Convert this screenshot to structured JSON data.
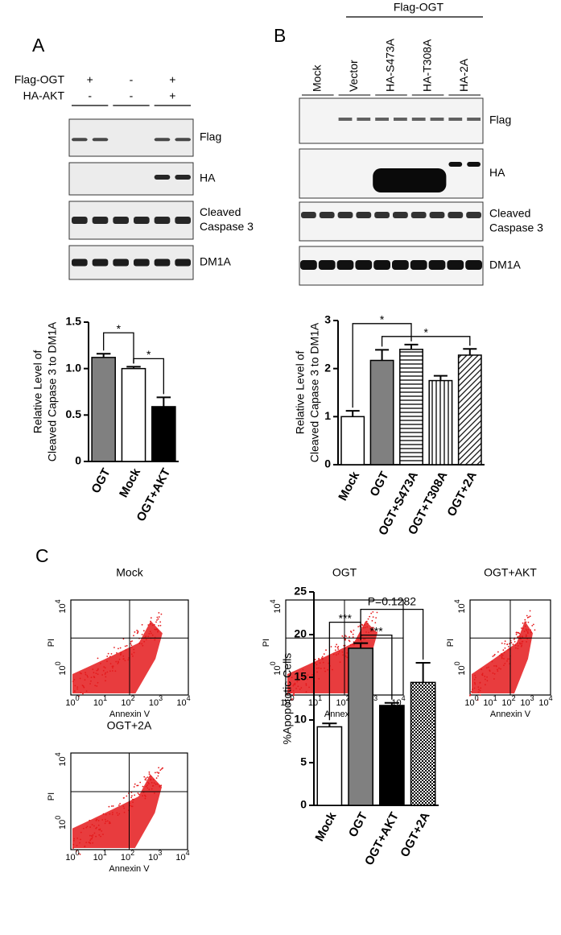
{
  "panels": [
    "A",
    "B",
    "C"
  ],
  "blot_a": {
    "row_labels": [
      "Flag-OGT",
      "HA-AKT"
    ],
    "signs": [
      [
        "+",
        "-",
        "+"
      ],
      [
        "-",
        "-",
        "+"
      ]
    ],
    "bands": [
      [
        "Flag"
      ],
      [
        "HA"
      ],
      [
        "Cleaved",
        "Caspase 3"
      ],
      [
        "DM1A"
      ]
    ]
  },
  "blot_b": {
    "group": "Flag-OGT",
    "lanes": [
      "Mock",
      "Vector",
      "HA-S473A",
      "HA-T308A",
      "HA-2A"
    ],
    "bands": [
      [
        "Flag"
      ],
      [
        "HA"
      ],
      [
        "Cleaved",
        "Caspase 3"
      ],
      [
        "DM1A"
      ]
    ]
  },
  "flow": {
    "plots": [
      "Mock",
      "OGT",
      "OGT+AKT",
      "OGT+2A"
    ],
    "x_label": "Annexin V",
    "y_label": "PI",
    "tick_base": "10",
    "x_tick_exps": [
      "0",
      "1",
      "2",
      "3",
      "4"
    ],
    "y_tick_exps": [
      "4",
      "0"
    ]
  },
  "chart_data": [
    {
      "type": "bar",
      "y_label": [
        "Relative Level of",
        "Cleaved Capase 3 to DM1A"
      ],
      "categories": [
        "OGT",
        "Mock",
        "OGT+AKT"
      ],
      "values": [
        1.12,
        1.0,
        0.59
      ],
      "errors": [
        0.04,
        0.02,
        0.1
      ],
      "fills": [
        "#808080",
        "#ffffff",
        "#000000"
      ],
      "ylim": [
        0,
        1.5
      ],
      "yticks": [
        0,
        0.5,
        {
          "value": 1,
          "label": "1.0"
        },
        1.5
      ],
      "significance": [
        {
          "label": "*",
          "pair": [
            "OGT",
            "Mock"
          ]
        },
        {
          "label": "*",
          "pair": [
            "Mock",
            "OGT+AKT"
          ]
        }
      ]
    },
    {
      "type": "bar",
      "y_label": [
        "Relative Level of",
        "Cleaved Capase 3 to DM1A"
      ],
      "categories": [
        "Mock",
        "OGT",
        "OGT+S473A",
        "OGT+T308A",
        "OGT+2A"
      ],
      "values": [
        1.0,
        2.17,
        2.4,
        1.75,
        2.28
      ],
      "errors": [
        0.12,
        0.22,
        0.1,
        0.1,
        0.13
      ],
      "fills": [
        "#ffffff",
        "#808080",
        "hstripe",
        "vstripe",
        "diag"
      ],
      "ylim": [
        0,
        3
      ],
      "yticks": [
        0,
        1,
        2,
        3
      ],
      "significance": [
        {
          "label": "*",
          "pair": [
            "Mock",
            "OGT+S473A"
          ]
        },
        {
          "label": "*",
          "pair": [
            "OGT",
            "OGT+2A"
          ]
        }
      ]
    },
    {
      "type": "bar",
      "y_label": [
        "%Apopototic Cells"
      ],
      "categories": [
        "Mock",
        "OGT",
        "OGT+AKT",
        "OGT+2A"
      ],
      "values": [
        9.2,
        18.4,
        11.7,
        14.4
      ],
      "errors": [
        0.4,
        0.6,
        0.3,
        2.3
      ],
      "fills": [
        "#ffffff",
        "#808080",
        "#000000",
        "check"
      ],
      "ylim": [
        0,
        25
      ],
      "yticks": [
        0,
        5,
        10,
        15,
        20,
        25
      ],
      "significance": [
        {
          "label": "P=0.1282",
          "pair": [
            "OGT",
            "OGT+2A"
          ]
        },
        {
          "label": "***",
          "pair": [
            "Mock",
            "OGT"
          ]
        },
        {
          "label": "***",
          "pair": [
            "OGT",
            "OGT+AKT"
          ]
        }
      ]
    }
  ]
}
